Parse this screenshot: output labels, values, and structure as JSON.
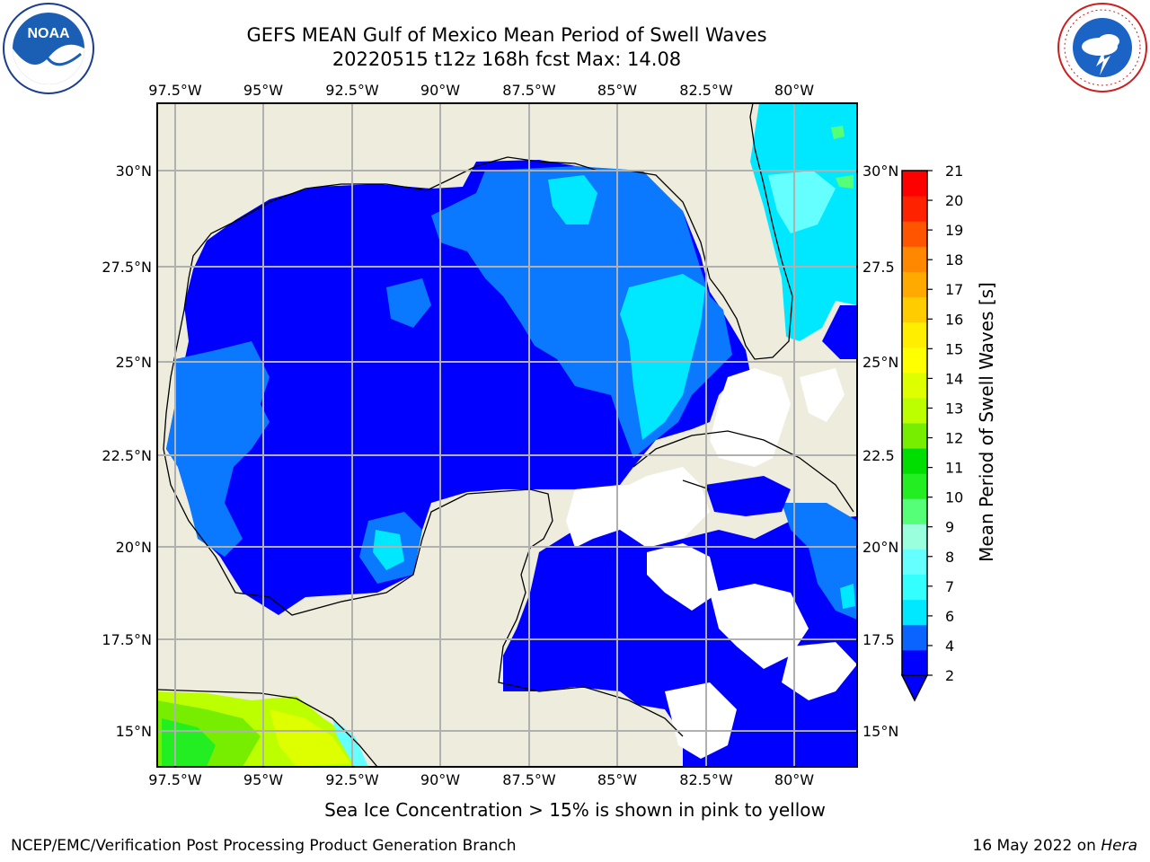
{
  "title": {
    "line1": "GEFS MEAN Gulf of Mexico Mean Period of Swell Waves",
    "line2": "20220515 t12z 168h fcst   Max: 14.08"
  },
  "logos": {
    "left": "noaa-logo",
    "right": "national-weather-service-logo",
    "left_text": "NOAA",
    "right_text": "NATIONAL WEATHER SERVICE"
  },
  "map": {
    "region": "Gulf of Mexico",
    "lon_ticks": [
      "97.5°W",
      "95°W",
      "92.5°W",
      "90°W",
      "87.5°W",
      "85°W",
      "82.5°W",
      "80°W"
    ],
    "lat_ticks": [
      "30°N",
      "27.5°N",
      "25°N",
      "22.5°N",
      "20°N",
      "17.5°N",
      "15°N"
    ],
    "right_lat_ticks": [
      "30°N",
      "27.5",
      "25°N",
      "22.5",
      "20°N",
      "17.5",
      "15°N"
    ],
    "colors": {
      "land": "#eeeddd",
      "gridline": "#b0b0b0",
      "coast": "#000000"
    }
  },
  "colorbar": {
    "label": "Mean Period of Swell Waves [s]",
    "ticks": [
      "2",
      "4",
      "6",
      "7",
      "8",
      "9",
      "10",
      "11",
      "12",
      "13",
      "14",
      "15",
      "16",
      "17",
      "18",
      "19",
      "20",
      "21"
    ],
    "colors": [
      "#0000ff",
      "#0a64ff",
      "#00e8ff",
      "#33ffff",
      "#66ffff",
      "#99ffdd",
      "#55ff77",
      "#22ee22",
      "#00dd00",
      "#77ee00",
      "#bbff00",
      "#ddff00",
      "#ffff00",
      "#ffee00",
      "#ffcc00",
      "#ffaa00",
      "#ff8800",
      "#ff5500",
      "#ff2200",
      "#ff0000"
    ]
  },
  "caption": "Sea Ice Concentration > 15% is shown in pink to yellow",
  "footer": {
    "left": "NCEP/EMC/Verification Post Processing Product Generation Branch",
    "right_date": "16 May 2022 on ",
    "right_machine": "Hera"
  }
}
